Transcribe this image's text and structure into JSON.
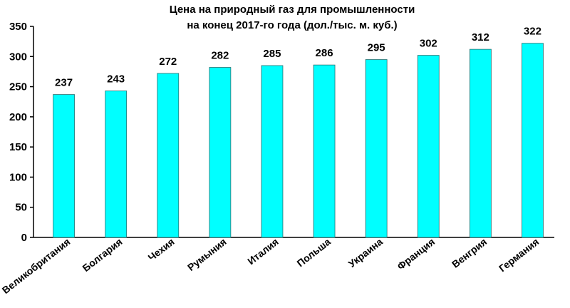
{
  "chart_data": {
    "type": "bar",
    "title_line1": "Цена на природный газ для промышленности",
    "title_line2": "на конец 2017-го года (дол./тыс. м. куб.)",
    "categories": [
      "Великобритания",
      "Болгария",
      "Чехия",
      "Румыния",
      "Италия",
      "Польша",
      "Украина",
      "Франция",
      "Венгрия",
      "Германия"
    ],
    "values": [
      237,
      243,
      272,
      282,
      285,
      286,
      295,
      302,
      312,
      322
    ],
    "ylim": [
      0,
      350
    ],
    "yticks": [
      0,
      50,
      100,
      150,
      200,
      250,
      300,
      350
    ],
    "grid": false,
    "legend": "none",
    "bar_color": "#00FFFF",
    "bar_edge_color": "#2a6f6f"
  }
}
